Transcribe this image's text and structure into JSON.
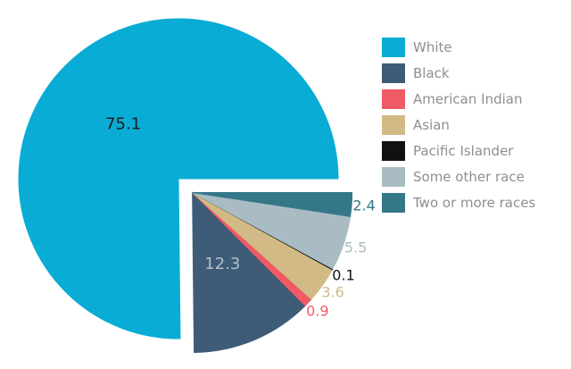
{
  "chart_data": {
    "type": "pie",
    "title": "",
    "legend_position": "right",
    "background_color": "#ffffff",
    "legend_text_color": "#8f8f8f",
    "series": [
      {
        "label": "White",
        "value": 75.1,
        "color": "#09acd4",
        "value_color": "#1d1d1d",
        "label_placement": "inside",
        "exploded": false
      },
      {
        "label": "Black",
        "value": 12.3,
        "color": "#3e5c78",
        "value_color": "#b3bfc8",
        "label_placement": "inside",
        "exploded": true
      },
      {
        "label": "American Indian",
        "value": 0.9,
        "color": "#ef5a65",
        "value_color": "#ef5a65",
        "label_placement": "outside",
        "exploded": true
      },
      {
        "label": "Asian",
        "value": 3.6,
        "color": "#d1ba85",
        "value_color": "#d1ba85",
        "label_placement": "outside",
        "exploded": true
      },
      {
        "label": "Pacific Islander",
        "value": 0.1,
        "color": "#111111",
        "value_color": "#111111",
        "label_placement": "outside",
        "exploded": true
      },
      {
        "label": "Some other race",
        "value": 5.5,
        "color": "#aabcc3",
        "value_color": "#aabcc3",
        "label_placement": "outside",
        "exploded": true
      },
      {
        "label": "Two or more races",
        "value": 2.4,
        "color": "#347789",
        "value_color": "#347789",
        "label_placement": "outside",
        "exploded": true
      }
    ]
  }
}
